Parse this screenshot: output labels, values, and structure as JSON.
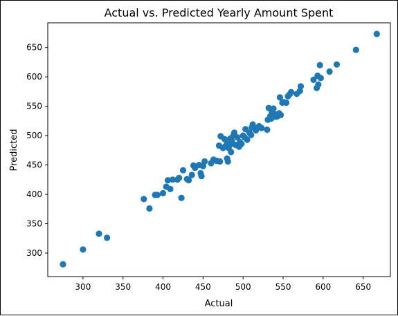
{
  "chart_data": {
    "type": "scatter",
    "title": "Actual vs. Predicted Yearly Amount Spent",
    "xlabel": "Actual",
    "ylabel": "Predicted",
    "xlim": [
      256,
      684
    ],
    "ylim": [
      260,
      692
    ],
    "xticks": [
      300,
      350,
      400,
      450,
      500,
      550,
      600,
      650
    ],
    "yticks": [
      300,
      350,
      400,
      450,
      500,
      550,
      600,
      650
    ],
    "marker_color": "#1f77b4",
    "grid": false,
    "legend": "none",
    "series": [
      {
        "points": [
          [
            275,
            281
          ],
          [
            300,
            306
          ],
          [
            320,
            333
          ],
          [
            330,
            326
          ],
          [
            376,
            392
          ],
          [
            383,
            376
          ],
          [
            390,
            399
          ],
          [
            393,
            399
          ],
          [
            400,
            402
          ],
          [
            404,
            413
          ],
          [
            406,
            424
          ],
          [
            409,
            409
          ],
          [
            412,
            425
          ],
          [
            418,
            425
          ],
          [
            420,
            428
          ],
          [
            423,
            394
          ],
          [
            425,
            441
          ],
          [
            430,
            426
          ],
          [
            432,
            424
          ],
          [
            436,
            433
          ],
          [
            438,
            449
          ],
          [
            440,
            445
          ],
          [
            445,
            450
          ],
          [
            447,
            436
          ],
          [
            448,
            431
          ],
          [
            450,
            448
          ],
          [
            452,
            456
          ],
          [
            460,
            453
          ],
          [
            463,
            459
          ],
          [
            467,
            457
          ],
          [
            470,
            483
          ],
          [
            471,
            456
          ],
          [
            472,
            499
          ],
          [
            475,
            479
          ],
          [
            477,
            494
          ],
          [
            478,
            482
          ],
          [
            480,
            486
          ],
          [
            480,
            461
          ],
          [
            481,
            456
          ],
          [
            482,
            479
          ],
          [
            484,
            495
          ],
          [
            485,
            472
          ],
          [
            486,
            491
          ],
          [
            487,
            486
          ],
          [
            488,
            500
          ],
          [
            489,
            505
          ],
          [
            491,
            484
          ],
          [
            493,
            497
          ],
          [
            495,
            481
          ],
          [
            496,
            489
          ],
          [
            498,
            486
          ],
          [
            500,
            500
          ],
          [
            502,
            497
          ],
          [
            503,
            511
          ],
          [
            505,
            493
          ],
          [
            508,
            505
          ],
          [
            510,
            501
          ],
          [
            511,
            514
          ],
          [
            512,
            519
          ],
          [
            514,
            513
          ],
          [
            516,
            509
          ],
          [
            520,
            516
          ],
          [
            523,
            513
          ],
          [
            530,
            510
          ],
          [
            531,
            527
          ],
          [
            532,
            547
          ],
          [
            534,
            533
          ],
          [
            535,
            529
          ],
          [
            536,
            540
          ],
          [
            538,
            546
          ],
          [
            540,
            536
          ],
          [
            541,
            532
          ],
          [
            543,
            533
          ],
          [
            545,
            538
          ],
          [
            546,
            565
          ],
          [
            547,
            535
          ],
          [
            549,
            556
          ],
          [
            551,
            557
          ],
          [
            554,
            556
          ],
          [
            556,
            567
          ],
          [
            558,
            570
          ],
          [
            560,
            574
          ],
          [
            567,
            571
          ],
          [
            571,
            576
          ],
          [
            572,
            584
          ],
          [
            588,
            595
          ],
          [
            592,
            581
          ],
          [
            593,
            602
          ],
          [
            594,
            587
          ],
          [
            596,
            620
          ],
          [
            597,
            598
          ],
          [
            608,
            609
          ],
          [
            617,
            621
          ],
          [
            641,
            646
          ],
          [
            667,
            673
          ]
        ]
      }
    ]
  }
}
